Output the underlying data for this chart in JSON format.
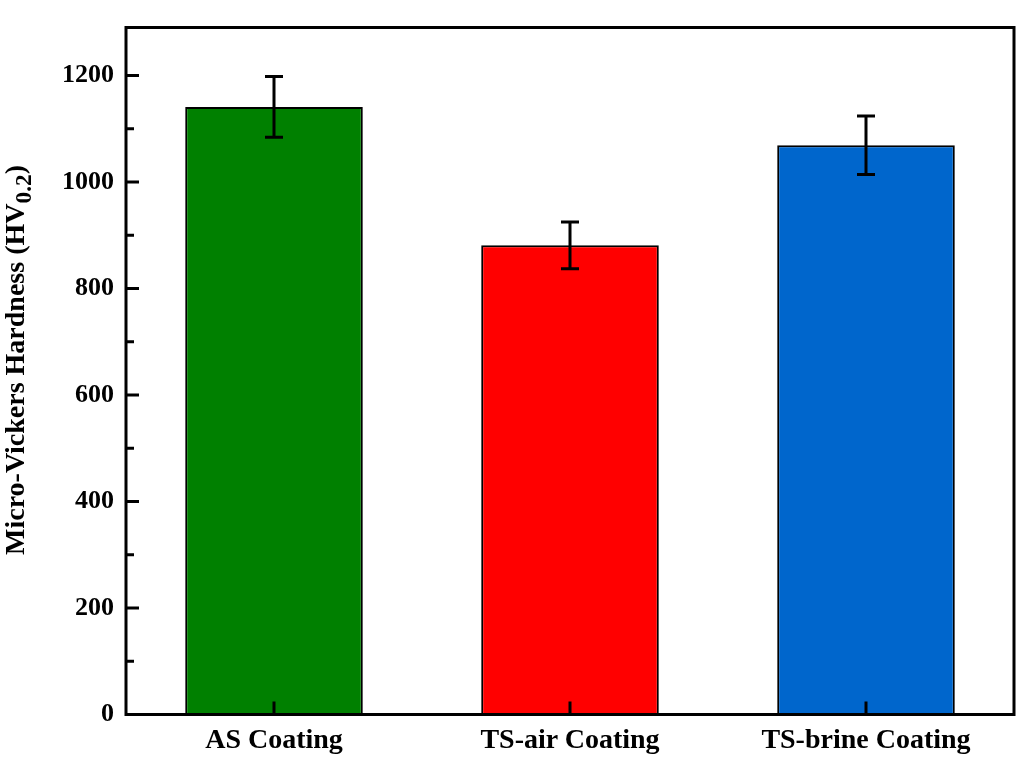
{
  "chart_data": {
    "type": "bar",
    "ylabel": "Micro-Vickers Hardness (HV$_{0.2}$)",
    "categories": [
      "AS Coating",
      "TS-air Coating",
      "TS-brine Coating"
    ],
    "values": [
      1141,
      881,
      1069
    ],
    "colors": [
      "#008000",
      "#ff0000",
      "#0066cc"
    ],
    "errors": [
      57,
      44,
      55
    ],
    "ylim": [
      0,
      1290
    ],
    "yticks": [
      0,
      {
        "value": 100,
        "label": null
      },
      200,
      {
        "value": 300,
        "label": null
      },
      400,
      {
        "value": 500,
        "label": null
      },
      600,
      {
        "value": 700,
        "label": null
      },
      800,
      {
        "value": 900,
        "label": null
      },
      1000,
      {
        "value": 1100,
        "label": null
      },
      1200
    ],
    "grid": false,
    "legend": false
  }
}
